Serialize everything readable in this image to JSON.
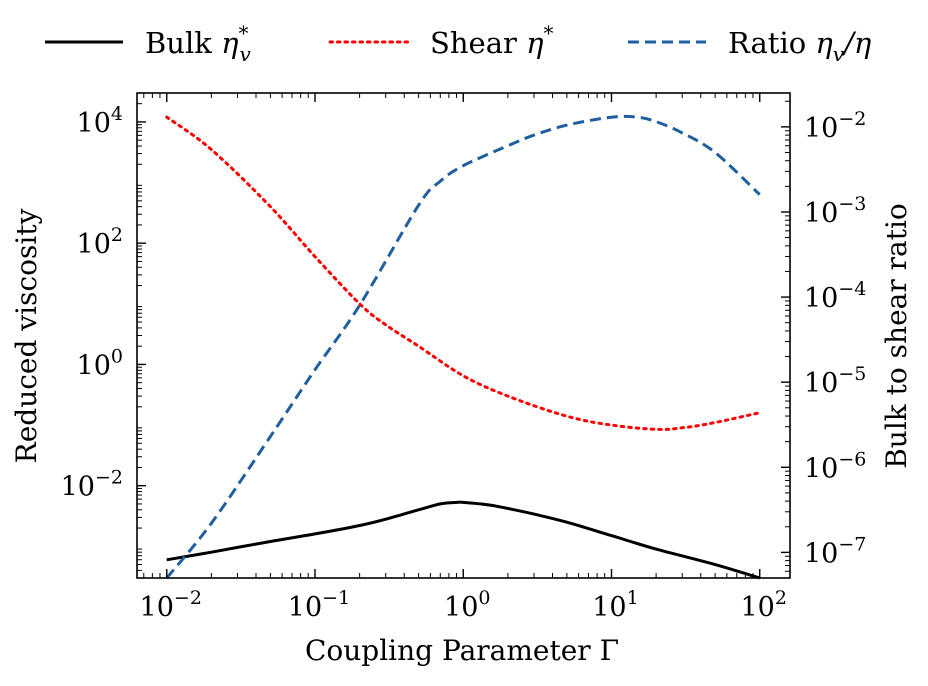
{
  "chart_data": {
    "type": "line",
    "xlabel": "Coupling Parameter Γ",
    "ylabel_left": "Reduced viscosity",
    "ylabel_right": "Bulk to shear ratio",
    "x_scale": "log",
    "y_left_scale": "log",
    "y_right_scale": "log",
    "xlim": [
      0.0063,
      160
    ],
    "y_left_lim": [
      0.0003,
      30000
    ],
    "y_right_lim": [
      5e-08,
      0.025
    ],
    "grid": false,
    "legend": {
      "placement": "top",
      "columns": 3
    },
    "x_ticks": [
      {
        "base": "10",
        "exp": "−2"
      },
      {
        "base": "10",
        "exp": "−1"
      },
      {
        "base": "10",
        "exp": "0"
      },
      {
        "base": "10",
        "exp": "1"
      },
      {
        "base": "10",
        "exp": "2"
      }
    ],
    "x_tick_values": [
      0.01,
      0.1,
      1,
      10,
      100
    ],
    "y_left_ticks": [
      {
        "base": "10",
        "exp": "4"
      },
      {
        "base": "10",
        "exp": "2"
      },
      {
        "base": "10",
        "exp": "0"
      },
      {
        "base": "10",
        "exp": "−2"
      }
    ],
    "y_left_tick_values": [
      10000,
      100,
      1,
      0.01
    ],
    "y_right_ticks": [
      {
        "base": "10",
        "exp": "−2"
      },
      {
        "base": "10",
        "exp": "−3"
      },
      {
        "base": "10",
        "exp": "−4"
      },
      {
        "base": "10",
        "exp": "−5"
      },
      {
        "base": "10",
        "exp": "−6"
      },
      {
        "base": "10",
        "exp": "−7"
      }
    ],
    "y_right_tick_values": [
      0.01,
      0.001,
      0.0001,
      1e-05,
      1e-06,
      1e-07
    ],
    "series": [
      {
        "name": "Bulk η_v^*",
        "legend_label": "Bulk",
        "legend_symbol": {
          "base": "η",
          "sub": "v",
          "sup": "*"
        },
        "axis": "left",
        "style": "solid",
        "color": "#000000",
        "x": [
          0.01,
          0.02,
          0.05,
          0.1,
          0.2,
          0.3,
          0.5,
          0.7,
          0.9,
          1.0,
          1.5,
          2,
          3,
          5,
          10,
          20,
          50,
          100
        ],
        "y": [
          0.0006,
          0.0008,
          0.0012,
          0.0016,
          0.0022,
          0.0028,
          0.004,
          0.005,
          0.0053,
          0.0053,
          0.0048,
          0.0042,
          0.0034,
          0.0025,
          0.0015,
          0.0009,
          0.0005,
          0.0003
        ]
      },
      {
        "name": "Shear η^*",
        "legend_label": "Shear",
        "legend_symbol": {
          "base": "η",
          "sub": "",
          "sup": "*"
        },
        "axis": "left",
        "style": "dotted",
        "color": "#ff0000",
        "x": [
          0.01,
          0.02,
          0.05,
          0.1,
          0.2,
          0.3,
          0.5,
          1,
          2,
          5,
          10,
          20,
          30,
          50,
          100
        ],
        "y": [
          12000,
          3500,
          400,
          60,
          10,
          4.5,
          2.0,
          0.65,
          0.3,
          0.14,
          0.1,
          0.085,
          0.09,
          0.11,
          0.16
        ]
      },
      {
        "name": "Ratio η_v/η",
        "legend_label": "Ratio",
        "legend_symbol": {
          "base": "η",
          "sub": "v",
          "sup": "",
          "tail": "/η"
        },
        "axis": "right",
        "style": "dashed",
        "color": "#1f5fa0",
        "x": [
          0.01,
          0.02,
          0.05,
          0.1,
          0.2,
          0.5,
          0.7,
          1,
          2,
          3,
          5,
          10,
          15,
          20,
          30,
          50,
          100
        ],
        "y": [
          5e-08,
          2.2e-07,
          2.3e-06,
          1.4e-05,
          8e-05,
          0.0012,
          0.0023,
          0.0035,
          0.006,
          0.008,
          0.0105,
          0.013,
          0.013,
          0.0115,
          0.0085,
          0.005,
          0.0016
        ]
      }
    ]
  }
}
